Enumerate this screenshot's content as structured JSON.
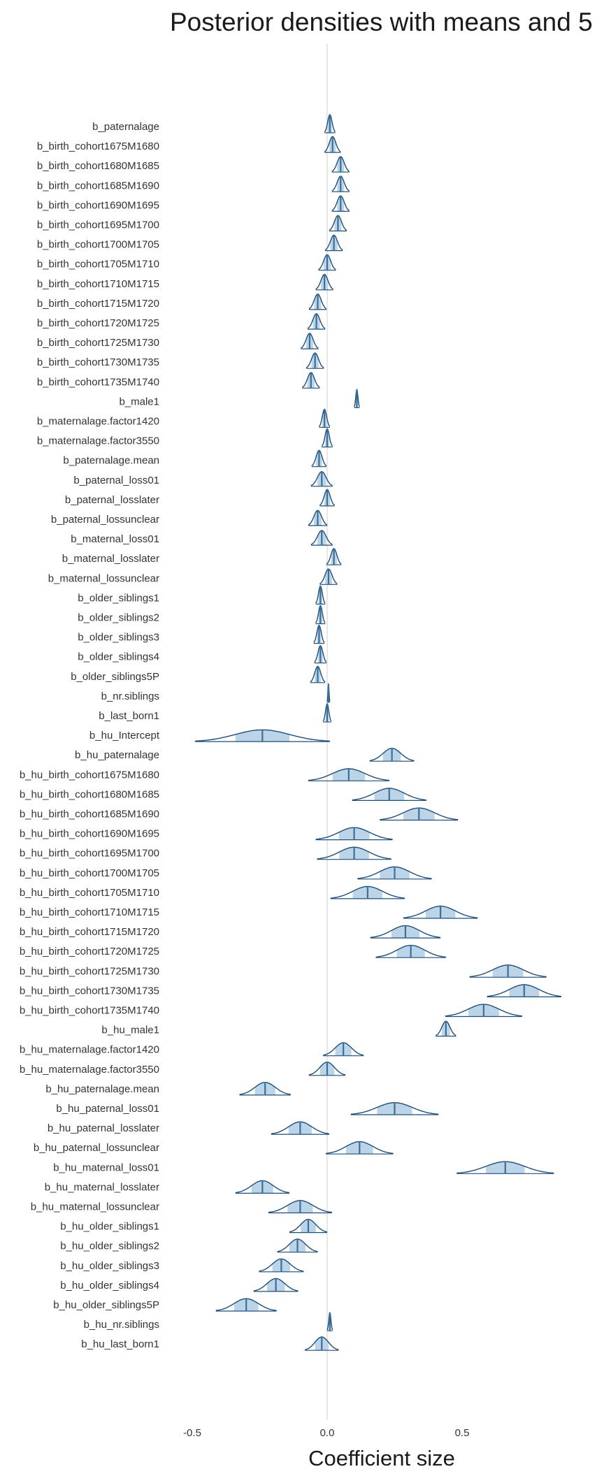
{
  "chart_data": {
    "type": "ridgeline",
    "title": "Posterior densities with means and 5",
    "xlabel": "Coefficient size",
    "xticks": [
      -0.5,
      0.0,
      0.5
    ],
    "xtick_labels": [
      "-0.5",
      "0.0",
      "0.5"
    ],
    "xlim": [
      -0.5,
      1.0
    ],
    "zero_line": true,
    "grid": false,
    "colors": {
      "outline": "#1f4e79",
      "interval": "#bcd4e8",
      "mean": "#3b6f98",
      "zero": "#d0d0d0"
    },
    "parameters": [
      {
        "name": "b_paternalage",
        "mean": 0.01,
        "sd": 0.008
      },
      {
        "name": "b_birth_cohort1675M1680",
        "mean": 0.02,
        "sd": 0.012
      },
      {
        "name": "b_birth_cohort1680M1685",
        "mean": 0.05,
        "sd": 0.013
      },
      {
        "name": "b_birth_cohort1685M1690",
        "mean": 0.05,
        "sd": 0.013
      },
      {
        "name": "b_birth_cohort1690M1695",
        "mean": 0.05,
        "sd": 0.013
      },
      {
        "name": "b_birth_cohort1695M1700",
        "mean": 0.04,
        "sd": 0.013
      },
      {
        "name": "b_birth_cohort1700M1705",
        "mean": 0.025,
        "sd": 0.013
      },
      {
        "name": "b_birth_cohort1705M1710",
        "mean": 0.0,
        "sd": 0.013
      },
      {
        "name": "b_birth_cohort1710M1715",
        "mean": -0.01,
        "sd": 0.013
      },
      {
        "name": "b_birth_cohort1715M1720",
        "mean": -0.035,
        "sd": 0.013
      },
      {
        "name": "b_birth_cohort1720M1725",
        "mean": -0.04,
        "sd": 0.013
      },
      {
        "name": "b_birth_cohort1725M1730",
        "mean": -0.065,
        "sd": 0.013
      },
      {
        "name": "b_birth_cohort1730M1735",
        "mean": -0.045,
        "sd": 0.013
      },
      {
        "name": "b_birth_cohort1735M1740",
        "mean": -0.06,
        "sd": 0.013
      },
      {
        "name": "b_male1",
        "mean": 0.11,
        "sd": 0.004
      },
      {
        "name": "b_maternalage.factor1420",
        "mean": -0.01,
        "sd": 0.008
      },
      {
        "name": "b_maternalage.factor3550",
        "mean": 0.0,
        "sd": 0.008
      },
      {
        "name": "b_paternalage.mean",
        "mean": -0.03,
        "sd": 0.011
      },
      {
        "name": "b_paternal_loss01",
        "mean": -0.02,
        "sd": 0.016
      },
      {
        "name": "b_paternal_losslater",
        "mean": 0.0,
        "sd": 0.011
      },
      {
        "name": "b_paternal_lossunclear",
        "mean": -0.035,
        "sd": 0.014
      },
      {
        "name": "b_maternal_loss01",
        "mean": -0.02,
        "sd": 0.016
      },
      {
        "name": "b_maternal_losslater",
        "mean": 0.025,
        "sd": 0.011
      },
      {
        "name": "b_maternal_lossunclear",
        "mean": 0.005,
        "sd": 0.013
      },
      {
        "name": "b_older_siblings1",
        "mean": -0.025,
        "sd": 0.007
      },
      {
        "name": "b_older_siblings2",
        "mean": -0.025,
        "sd": 0.007
      },
      {
        "name": "b_older_siblings3",
        "mean": -0.03,
        "sd": 0.008
      },
      {
        "name": "b_older_siblings4",
        "mean": -0.025,
        "sd": 0.009
      },
      {
        "name": "b_older_siblings5P",
        "mean": -0.035,
        "sd": 0.011
      },
      {
        "name": "b_nr.siblings",
        "mean": 0.005,
        "sd": 0.002
      },
      {
        "name": "b_last_born1",
        "mean": 0.0,
        "sd": 0.006
      },
      {
        "name": "b_hu_Intercept",
        "mean": -0.24,
        "sd": 0.1
      },
      {
        "name": "b_hu_paternalage",
        "mean": 0.24,
        "sd": 0.033
      },
      {
        "name": "b_hu_birth_cohort1675M1680",
        "mean": 0.08,
        "sd": 0.06
      },
      {
        "name": "b_hu_birth_cohort1680M1685",
        "mean": 0.23,
        "sd": 0.055
      },
      {
        "name": "b_hu_birth_cohort1685M1690",
        "mean": 0.34,
        "sd": 0.058
      },
      {
        "name": "b_hu_birth_cohort1690M1695",
        "mean": 0.1,
        "sd": 0.057
      },
      {
        "name": "b_hu_birth_cohort1695M1700",
        "mean": 0.1,
        "sd": 0.055
      },
      {
        "name": "b_hu_birth_cohort1700M1705",
        "mean": 0.25,
        "sd": 0.055
      },
      {
        "name": "b_hu_birth_cohort1705M1710",
        "mean": 0.15,
        "sd": 0.055
      },
      {
        "name": "b_hu_birth_cohort1710M1715",
        "mean": 0.42,
        "sd": 0.055
      },
      {
        "name": "b_hu_birth_cohort1715M1720",
        "mean": 0.29,
        "sd": 0.052
      },
      {
        "name": "b_hu_birth_cohort1720M1725",
        "mean": 0.31,
        "sd": 0.052
      },
      {
        "name": "b_hu_birth_cohort1725M1730",
        "mean": 0.67,
        "sd": 0.057
      },
      {
        "name": "b_hu_birth_cohort1730M1735",
        "mean": 0.73,
        "sd": 0.055
      },
      {
        "name": "b_hu_birth_cohort1735M1740",
        "mean": 0.58,
        "sd": 0.057
      },
      {
        "name": "b_hu_male1",
        "mean": 0.44,
        "sd": 0.015
      },
      {
        "name": "b_hu_maternalage.factor1420",
        "mean": 0.06,
        "sd": 0.03
      },
      {
        "name": "b_hu_maternalage.factor3550",
        "mean": 0.0,
        "sd": 0.027
      },
      {
        "name": "b_hu_paternalage.mean",
        "mean": -0.23,
        "sd": 0.038
      },
      {
        "name": "b_hu_paternal_loss01",
        "mean": 0.25,
        "sd": 0.065
      },
      {
        "name": "b_hu_paternal_losslater",
        "mean": -0.1,
        "sd": 0.043
      },
      {
        "name": "b_hu_paternal_lossunclear",
        "mean": 0.12,
        "sd": 0.05
      },
      {
        "name": "b_hu_maternal_loss01",
        "mean": 0.66,
        "sd": 0.072
      },
      {
        "name": "b_hu_maternal_losslater",
        "mean": -0.24,
        "sd": 0.04
      },
      {
        "name": "b_hu_maternal_lossunclear",
        "mean": -0.1,
        "sd": 0.047
      },
      {
        "name": "b_hu_older_siblings1",
        "mean": -0.07,
        "sd": 0.028
      },
      {
        "name": "b_hu_older_siblings2",
        "mean": -0.11,
        "sd": 0.03
      },
      {
        "name": "b_hu_older_siblings3",
        "mean": -0.17,
        "sd": 0.033
      },
      {
        "name": "b_hu_older_siblings4",
        "mean": -0.19,
        "sd": 0.033
      },
      {
        "name": "b_hu_older_siblings5P",
        "mean": -0.3,
        "sd": 0.045
      },
      {
        "name": "b_hu_nr.siblings",
        "mean": 0.01,
        "sd": 0.004
      },
      {
        "name": "b_hu_last_born1",
        "mean": -0.02,
        "sd": 0.025
      }
    ]
  }
}
